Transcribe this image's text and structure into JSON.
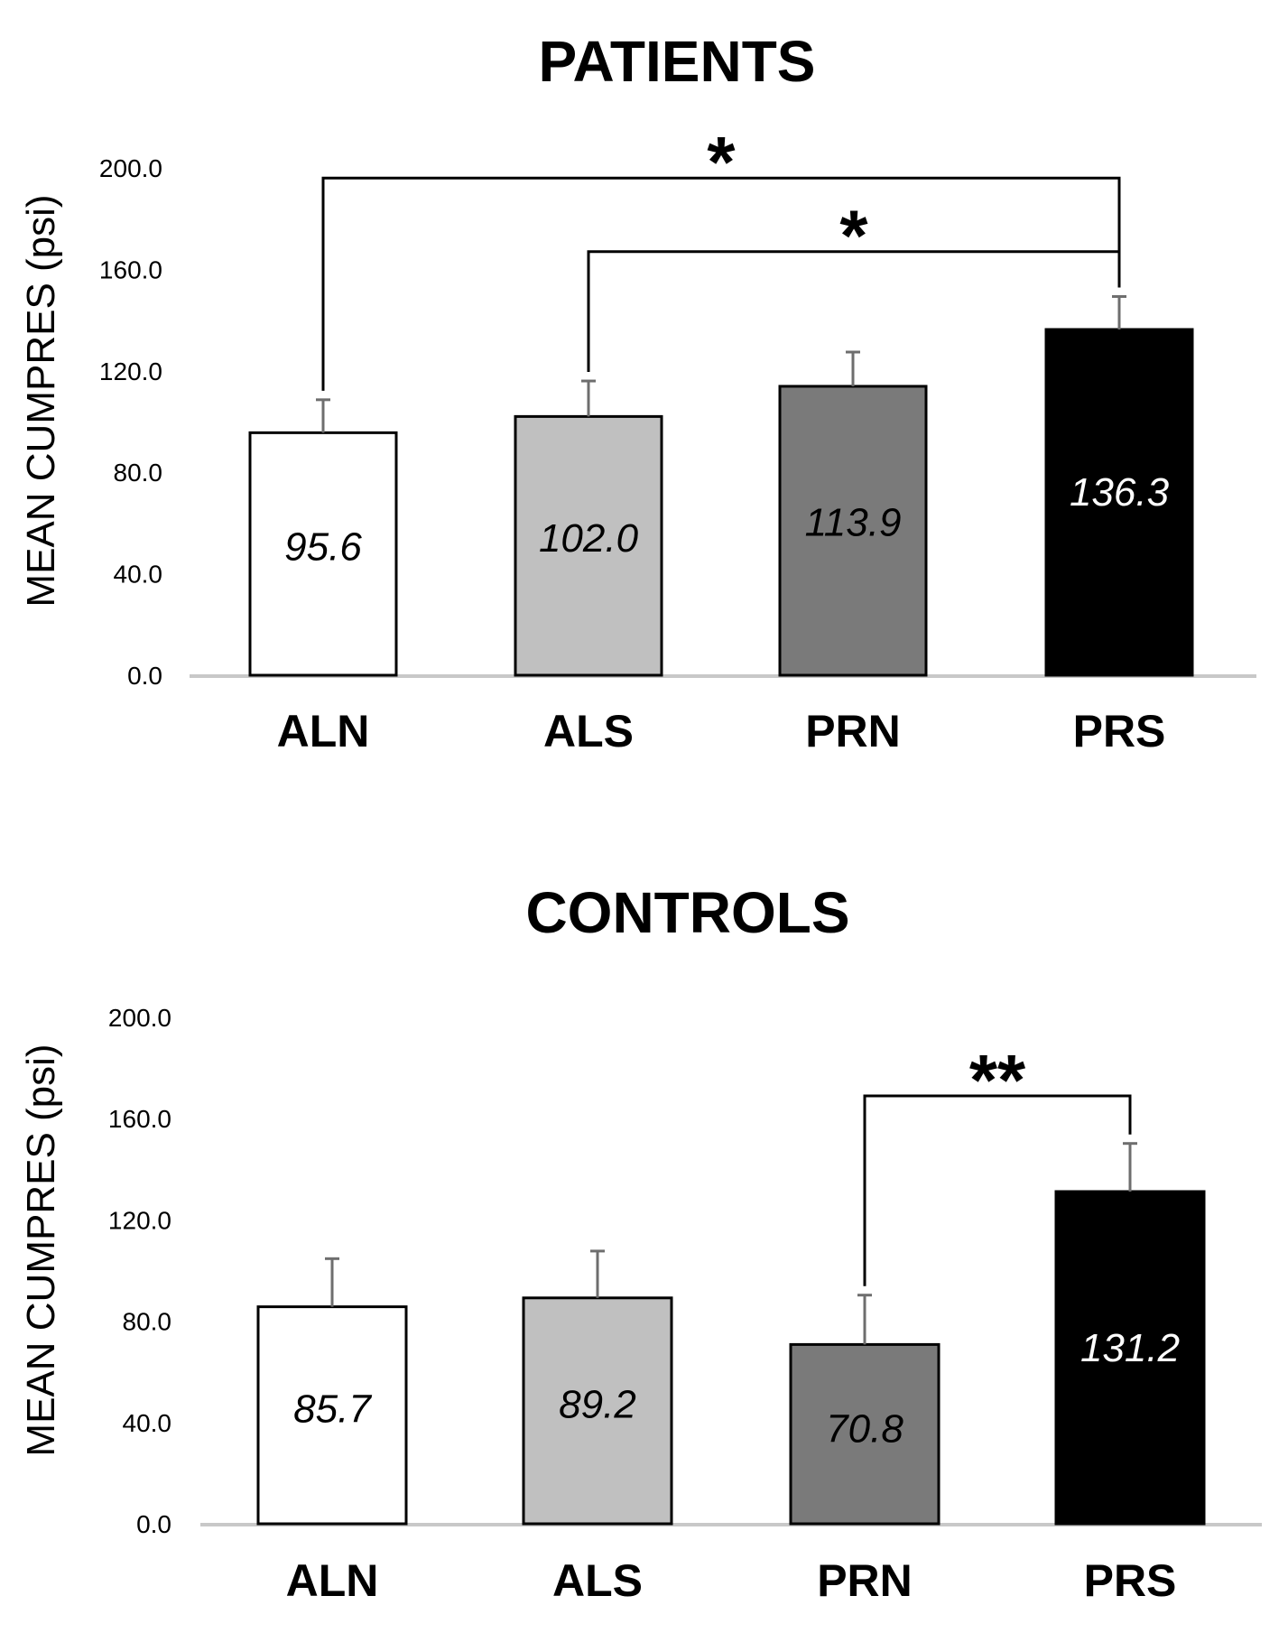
{
  "chart_data": [
    {
      "type": "bar",
      "title": "PATIENTS",
      "ylabel": "MEAN CUMPRES (psi)",
      "xlabel": "",
      "ylim": [
        0,
        200
      ],
      "yticks": [
        "0.0",
        "40.0",
        "80.0",
        "120.0",
        "160.0",
        "200.0"
      ],
      "categories": [
        "ALN",
        "ALS",
        "PRN",
        "PRS"
      ],
      "values": [
        95.6,
        102.0,
        113.9,
        136.3
      ],
      "value_labels": [
        "95.6",
        "102.0",
        "113.9",
        "136.3"
      ],
      "error_plus": [
        13.0,
        14.0,
        13.5,
        13.0
      ],
      "colors": [
        "#ffffff",
        "#c0c0c0",
        "#7a7a7a",
        "#000000"
      ],
      "label_colors": [
        "#000000",
        "#000000",
        "#000000",
        "#ffffff"
      ],
      "significance": [
        {
          "from": "ALN",
          "to": "PRS",
          "label": "*",
          "level": 196
        },
        {
          "from": "ALS",
          "to": "PRS",
          "label": "*",
          "level": 167
        }
      ]
    },
    {
      "type": "bar",
      "title": "CONTROLS",
      "ylabel": "MEAN CUMPRES (psi)",
      "xlabel": "",
      "ylim": [
        0,
        200
      ],
      "yticks": [
        "0.0",
        "40.0",
        "80.0",
        "120.0",
        "160.0",
        "200.0"
      ],
      "categories": [
        "ALN",
        "ALS",
        "PRN",
        "PRS"
      ],
      "values": [
        85.7,
        89.2,
        70.8,
        131.2
      ],
      "value_labels": [
        "85.7",
        "89.2",
        "70.8",
        "131.2"
      ],
      "error_plus": [
        19.0,
        18.5,
        19.5,
        19.0
      ],
      "colors": [
        "#ffffff",
        "#c0c0c0",
        "#7a7a7a",
        "#000000"
      ],
      "label_colors": [
        "#000000",
        "#000000",
        "#000000",
        "#ffffff"
      ],
      "significance": [
        {
          "from": "PRN",
          "to": "PRS",
          "label": "**",
          "level": 169
        }
      ]
    }
  ]
}
